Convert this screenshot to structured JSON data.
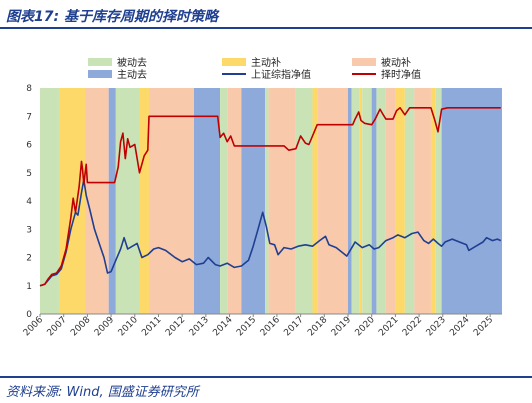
{
  "header": {
    "title": "图表17:  基于库存周期的择时策略"
  },
  "footer": {
    "source": "资料来源:  Wind,  国盛证券研究所"
  },
  "legend": {
    "passive_destock": "被动去",
    "active_restock": "主动补",
    "passive_restock": "被动补",
    "active_destock": "主动去",
    "index_nav": "上证综指净值",
    "timing_nav": "择时净值"
  },
  "colors": {
    "passive_destock": "#c9e3b6",
    "active_restock": "#fdd96a",
    "passive_restock": "#f9c9ab",
    "active_destock": "#8eaadb",
    "index_nav": "#203f91",
    "timing_nav": "#c00000"
  },
  "chart_data": {
    "type": "line",
    "title": "",
    "xlabel": "",
    "ylabel": "",
    "ylim": [
      0,
      8
    ],
    "xlim": [
      2006,
      2025.5
    ],
    "y_ticks": [
      "0",
      "1",
      "2",
      "3",
      "4",
      "5",
      "6",
      "7",
      "8"
    ],
    "x_ticks": [
      "2006",
      "2007",
      "2008",
      "2009",
      "2010",
      "2011",
      "2012",
      "2013",
      "2014",
      "2015",
      "2016",
      "2017",
      "2018",
      "2019",
      "2020",
      "2021",
      "2022",
      "2023",
      "2024",
      "2025"
    ],
    "regimes": [
      {
        "phase": "passive_destock",
        "start": 2006.0,
        "end": 2006.8
      },
      {
        "phase": "active_restock",
        "start": 2006.8,
        "end": 2007.9
      },
      {
        "phase": "passive_restock",
        "start": 2007.9,
        "end": 2008.9
      },
      {
        "phase": "active_destock",
        "start": 2008.9,
        "end": 2009.2
      },
      {
        "phase": "passive_destock",
        "start": 2009.2,
        "end": 2010.2
      },
      {
        "phase": "active_restock",
        "start": 2010.2,
        "end": 2010.6
      },
      {
        "phase": "passive_restock",
        "start": 2010.6,
        "end": 2012.5
      },
      {
        "phase": "active_destock",
        "start": 2012.5,
        "end": 2013.6
      },
      {
        "phase": "passive_destock",
        "start": 2013.6,
        "end": 2013.9
      },
      {
        "phase": "passive_restock",
        "start": 2013.9,
        "end": 2014.5
      },
      {
        "phase": "active_destock",
        "start": 2014.5,
        "end": 2015.5
      },
      {
        "phase": "passive_destock",
        "start": 2015.5,
        "end": 2015.65
      },
      {
        "phase": "passive_restock",
        "start": 2015.65,
        "end": 2016.8
      },
      {
        "phase": "passive_destock",
        "start": 2016.8,
        "end": 2017.5
      },
      {
        "phase": "active_restock",
        "start": 2017.5,
        "end": 2017.7
      },
      {
        "phase": "passive_restock",
        "start": 2017.7,
        "end": 2019.0
      },
      {
        "phase": "active_destock",
        "start": 2019.0,
        "end": 2019.15
      },
      {
        "phase": "passive_destock",
        "start": 2019.15,
        "end": 2019.5
      },
      {
        "phase": "active_restock",
        "start": 2019.5,
        "end": 2019.6
      },
      {
        "phase": "passive_destock",
        "start": 2019.6,
        "end": 2020.0
      },
      {
        "phase": "active_destock",
        "start": 2020.0,
        "end": 2020.2
      },
      {
        "phase": "passive_destock",
        "start": 2020.2,
        "end": 2020.6
      },
      {
        "phase": "passive_restock",
        "start": 2020.6,
        "end": 2021.0
      },
      {
        "phase": "active_restock",
        "start": 2021.0,
        "end": 2021.4
      },
      {
        "phase": "passive_destock",
        "start": 2021.4,
        "end": 2021.8
      },
      {
        "phase": "passive_restock",
        "start": 2021.8,
        "end": 2022.5
      },
      {
        "phase": "active_restock",
        "start": 2022.5,
        "end": 2022.7
      },
      {
        "phase": "passive_destock",
        "start": 2022.7,
        "end": 2022.95
      },
      {
        "phase": "active_destock",
        "start": 2022.95,
        "end": 2025.5
      }
    ],
    "series": [
      {
        "name": "上证综指净值",
        "key": "index_nav",
        "points": [
          [
            2006.0,
            1.0
          ],
          [
            2006.2,
            1.05
          ],
          [
            2006.35,
            1.2
          ],
          [
            2006.5,
            1.35
          ],
          [
            2006.7,
            1.4
          ],
          [
            2006.9,
            1.6
          ],
          [
            2007.1,
            2.2
          ],
          [
            2007.3,
            3.0
          ],
          [
            2007.5,
            3.6
          ],
          [
            2007.6,
            3.5
          ],
          [
            2007.75,
            4.3
          ],
          [
            2007.85,
            4.75
          ],
          [
            2007.95,
            4.2
          ],
          [
            2008.1,
            3.7
          ],
          [
            2008.3,
            3.0
          ],
          [
            2008.5,
            2.5
          ],
          [
            2008.7,
            2.0
          ],
          [
            2008.85,
            1.45
          ],
          [
            2009.0,
            1.5
          ],
          [
            2009.2,
            1.9
          ],
          [
            2009.4,
            2.3
          ],
          [
            2009.55,
            2.7
          ],
          [
            2009.7,
            2.3
          ],
          [
            2009.9,
            2.4
          ],
          [
            2010.1,
            2.5
          ],
          [
            2010.3,
            2.0
          ],
          [
            2010.55,
            2.1
          ],
          [
            2010.8,
            2.3
          ],
          [
            2011.0,
            2.35
          ],
          [
            2011.3,
            2.25
          ],
          [
            2011.7,
            2.0
          ],
          [
            2012.0,
            1.85
          ],
          [
            2012.3,
            1.95
          ],
          [
            2012.6,
            1.75
          ],
          [
            2012.9,
            1.8
          ],
          [
            2013.1,
            2.0
          ],
          [
            2013.4,
            1.75
          ],
          [
            2013.6,
            1.7
          ],
          [
            2013.9,
            1.8
          ],
          [
            2014.2,
            1.65
          ],
          [
            2014.5,
            1.7
          ],
          [
            2014.8,
            1.9
          ],
          [
            2015.0,
            2.4
          ],
          [
            2015.2,
            3.0
          ],
          [
            2015.4,
            3.6
          ],
          [
            2015.55,
            3.1
          ],
          [
            2015.7,
            2.5
          ],
          [
            2015.9,
            2.45
          ],
          [
            2016.05,
            2.1
          ],
          [
            2016.3,
            2.35
          ],
          [
            2016.6,
            2.3
          ],
          [
            2016.9,
            2.4
          ],
          [
            2017.2,
            2.45
          ],
          [
            2017.5,
            2.4
          ],
          [
            2017.8,
            2.6
          ],
          [
            2018.05,
            2.75
          ],
          [
            2018.2,
            2.45
          ],
          [
            2018.5,
            2.35
          ],
          [
            2018.8,
            2.15
          ],
          [
            2018.95,
            2.05
          ],
          [
            2019.2,
            2.4
          ],
          [
            2019.3,
            2.55
          ],
          [
            2019.6,
            2.35
          ],
          [
            2019.9,
            2.45
          ],
          [
            2020.1,
            2.3
          ],
          [
            2020.3,
            2.35
          ],
          [
            2020.6,
            2.6
          ],
          [
            2020.9,
            2.7
          ],
          [
            2021.1,
            2.8
          ],
          [
            2021.4,
            2.7
          ],
          [
            2021.7,
            2.85
          ],
          [
            2021.95,
            2.9
          ],
          [
            2022.2,
            2.6
          ],
          [
            2022.4,
            2.5
          ],
          [
            2022.6,
            2.65
          ],
          [
            2022.8,
            2.5
          ],
          [
            2022.95,
            2.4
          ],
          [
            2023.1,
            2.55
          ],
          [
            2023.4,
            2.65
          ],
          [
            2023.7,
            2.55
          ],
          [
            2024.0,
            2.45
          ],
          [
            2024.1,
            2.25
          ],
          [
            2024.4,
            2.4
          ],
          [
            2024.7,
            2.55
          ],
          [
            2024.85,
            2.7
          ],
          [
            2025.1,
            2.6
          ],
          [
            2025.3,
            2.65
          ],
          [
            2025.45,
            2.6
          ]
        ]
      },
      {
        "name": "择时净值",
        "key": "timing_nav",
        "points": [
          [
            2006.0,
            1.0
          ],
          [
            2006.2,
            1.05
          ],
          [
            2006.35,
            1.25
          ],
          [
            2006.5,
            1.4
          ],
          [
            2006.7,
            1.45
          ],
          [
            2006.9,
            1.7
          ],
          [
            2007.1,
            2.3
          ],
          [
            2007.3,
            3.4
          ],
          [
            2007.4,
            4.1
          ],
          [
            2007.5,
            3.6
          ],
          [
            2007.65,
            4.5
          ],
          [
            2007.75,
            5.4
          ],
          [
            2007.8,
            5.1
          ],
          [
            2007.85,
            4.6
          ],
          [
            2007.95,
            5.3
          ],
          [
            2008.0,
            4.65
          ],
          [
            2009.15,
            4.65
          ],
          [
            2009.3,
            5.2
          ],
          [
            2009.4,
            6.1
          ],
          [
            2009.5,
            6.4
          ],
          [
            2009.6,
            5.5
          ],
          [
            2009.7,
            6.2
          ],
          [
            2009.8,
            5.9
          ],
          [
            2010.0,
            6.0
          ],
          [
            2010.2,
            5.0
          ],
          [
            2010.4,
            5.6
          ],
          [
            2010.55,
            5.8
          ],
          [
            2010.6,
            7.0
          ],
          [
            2012.6,
            7.0
          ],
          [
            2013.5,
            7.0
          ],
          [
            2013.6,
            6.25
          ],
          [
            2013.75,
            6.4
          ],
          [
            2013.9,
            6.1
          ],
          [
            2014.05,
            6.3
          ],
          [
            2014.2,
            5.95
          ],
          [
            2016.3,
            5.95
          ],
          [
            2016.5,
            5.8
          ],
          [
            2016.8,
            5.85
          ],
          [
            2017.0,
            6.3
          ],
          [
            2017.2,
            6.05
          ],
          [
            2017.35,
            6.0
          ],
          [
            2017.5,
            6.3
          ],
          [
            2017.7,
            6.7
          ],
          [
            2019.2,
            6.7
          ],
          [
            2019.3,
            6.9
          ],
          [
            2019.45,
            7.15
          ],
          [
            2019.55,
            6.85
          ],
          [
            2019.7,
            6.75
          ],
          [
            2020.0,
            6.7
          ],
          [
            2020.15,
            6.9
          ],
          [
            2020.35,
            7.25
          ],
          [
            2020.45,
            7.1
          ],
          [
            2020.6,
            6.9
          ],
          [
            2020.9,
            6.9
          ],
          [
            2021.05,
            7.2
          ],
          [
            2021.2,
            7.3
          ],
          [
            2021.4,
            7.05
          ],
          [
            2021.6,
            7.3
          ],
          [
            2022.5,
            7.3
          ],
          [
            2022.65,
            6.9
          ],
          [
            2022.8,
            6.45
          ],
          [
            2022.95,
            7.25
          ],
          [
            2023.2,
            7.3
          ],
          [
            2025.45,
            7.3
          ]
        ]
      }
    ]
  }
}
